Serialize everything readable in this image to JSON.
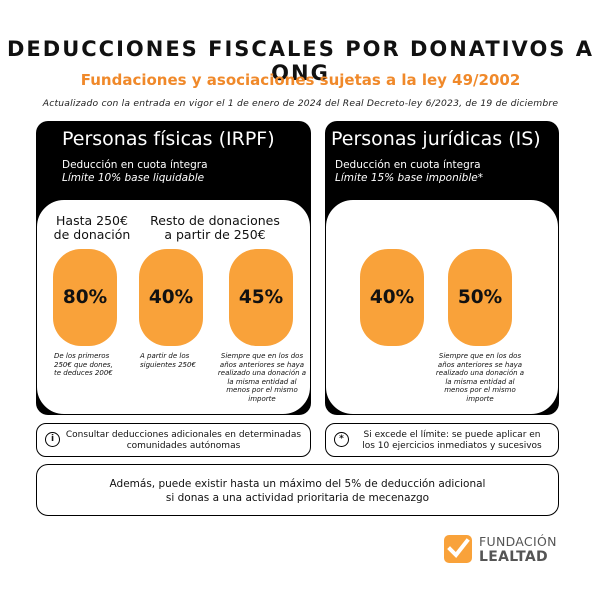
{
  "header": {
    "title": "DEDUCCIONES FISCALES POR DONATIVOS A ONG",
    "subtitle": "Fundaciones y asociaciones sujetas a la ley 49/2002",
    "updated": "Actualizado con la entrada en vigor el 1 de enero de 2024 del Real Decreto-ley 6/2023, de 19 de diciembre"
  },
  "colors": {
    "accent_orange": "#f0892a",
    "pill_orange": "#f9a23a",
    "panel_black": "#000000"
  },
  "irpf": {
    "title": "Personas físicas (IRPF)",
    "deduction": "Deducción en cuota íntegra",
    "limit": "Límite 10% base liquidable",
    "col1_head_line1": "Hasta 250€",
    "col1_head_line2": "de donación",
    "col2_head_line1": "Resto de donaciones",
    "col2_head_line2": "a partir de 250€",
    "pills": [
      {
        "value": "80%",
        "note_lines": [
          "De los primeros",
          "250€ que dones,",
          "te deduces 200€"
        ]
      },
      {
        "value": "40%",
        "note_lines": [
          "A partir de los",
          "siguientes 250€"
        ]
      },
      {
        "value": "45%",
        "note_lines": [
          "Siempre que en los dos",
          "años anteriores se haya",
          "realizado una donación a",
          "la misma entidad al",
          "menos por el mismo",
          "importe"
        ]
      }
    ]
  },
  "is": {
    "title": "Personas jurídicas (IS)",
    "deduction": "Deducción en cuota íntegra",
    "limit": "Límite 15% base imponible*",
    "pills": [
      {
        "value": "40%"
      },
      {
        "value": "50%",
        "note_lines": [
          "Siempre que en los dos",
          "años anteriores se haya",
          "realizado una donación a",
          "la misma entidad al",
          "menos por el mismo",
          "importe"
        ]
      }
    ]
  },
  "info": {
    "left_icon": "info-icon",
    "left_line1": "Consultar deducciones adicionales en determinadas",
    "left_line2": "comunidades autónomas",
    "right_icon": "asterisk-icon",
    "right_line1": "Si excede el límite: se puede aplicar en",
    "right_line2": "los 10 ejercicios inmediatos y sucesivos"
  },
  "bottom": {
    "line1": "Además, puede existir hasta un máximo del 5% de deducción adicional",
    "line2": "si donas a una actividad prioritaria de mecenazgo"
  },
  "logo": {
    "line1": "FUNDACIÓN",
    "line2": "LEALTAD",
    "icon": "check-mark-logo-icon"
  }
}
